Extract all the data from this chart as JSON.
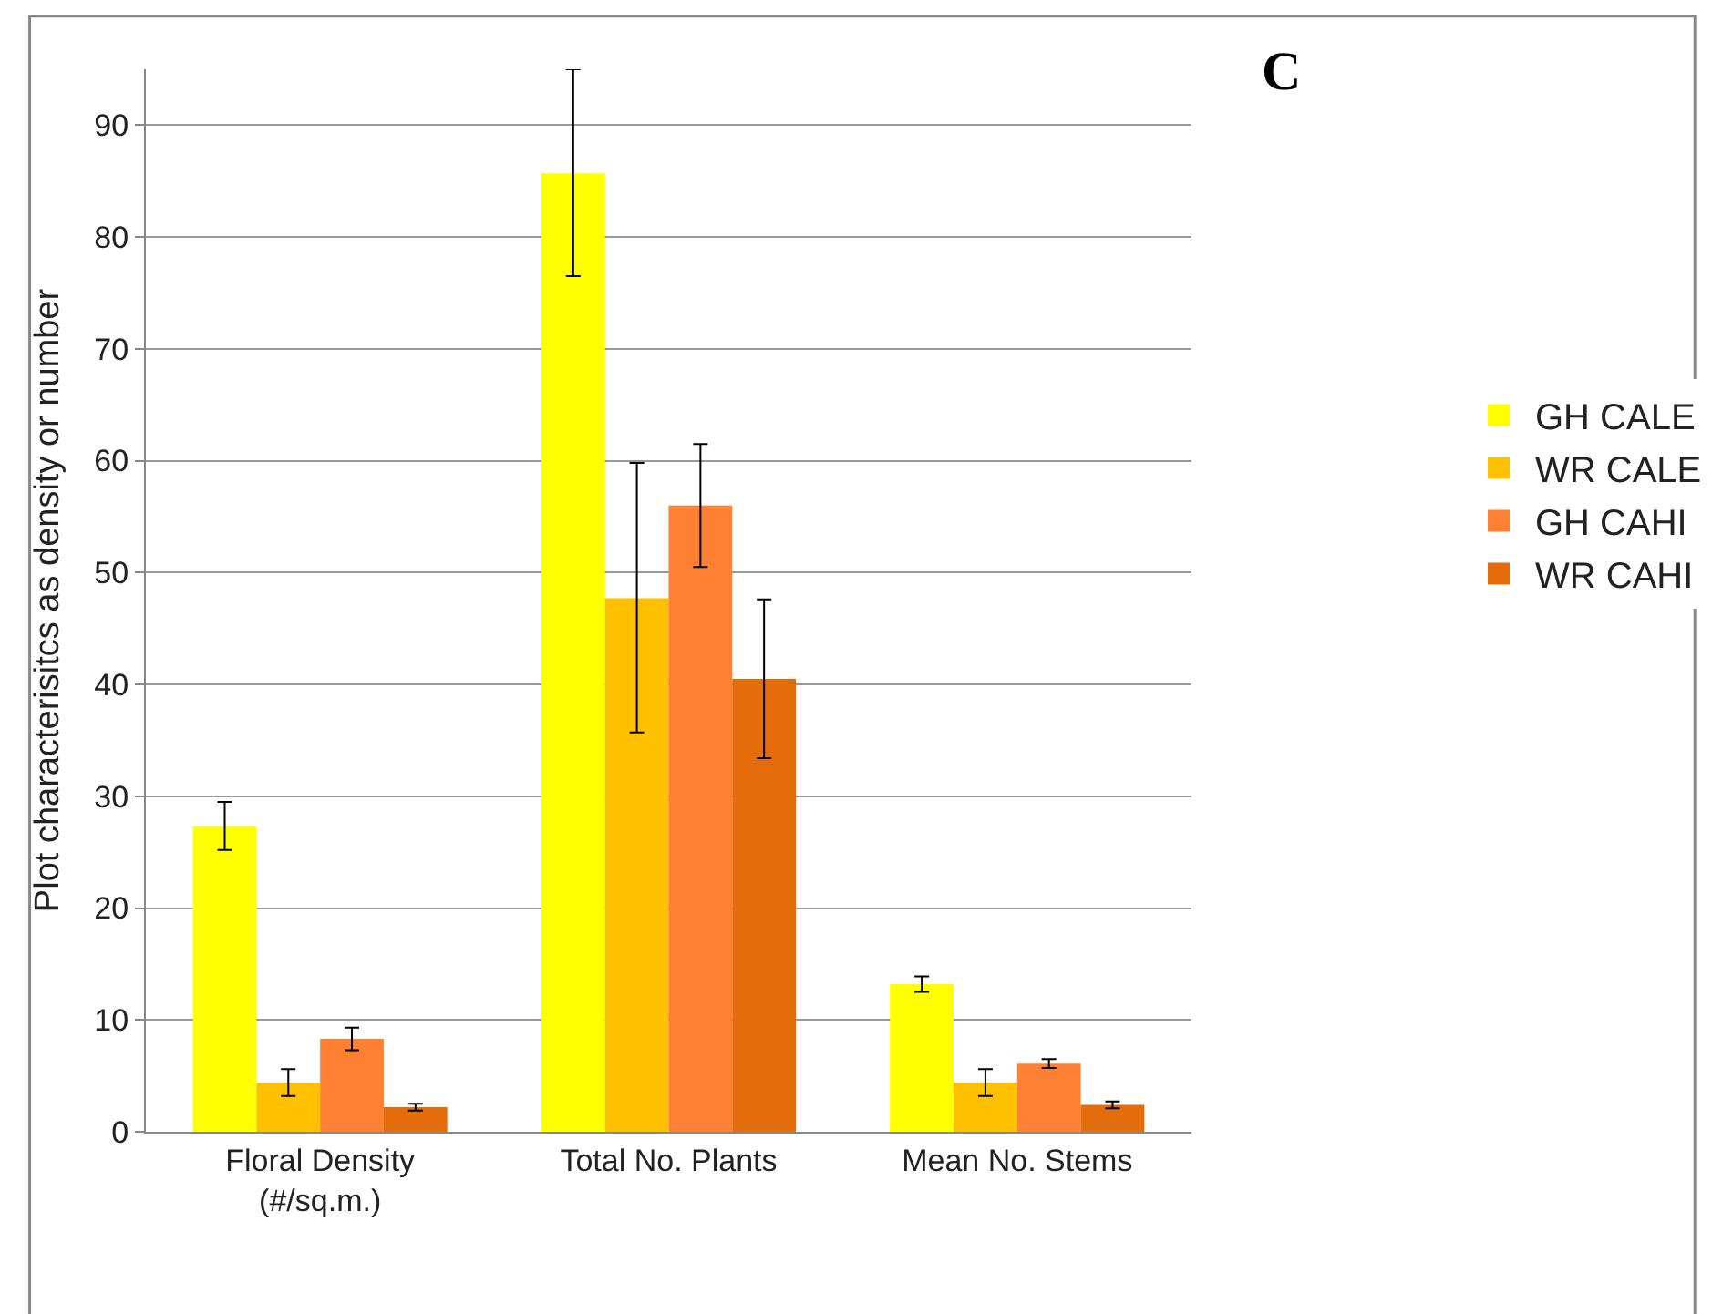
{
  "chart_data": {
    "type": "bar",
    "ylabel": "Plot characterisitcs as density or number",
    "categories": [
      "Floral Density\n(#/sq.m.)",
      "Total No. Plants",
      "Mean No. Stems"
    ],
    "series": [
      {
        "name": "GH CALE",
        "color": "#ffff00",
        "values": [
          27.3,
          85.7,
          13.2
        ],
        "errors": [
          [
            25.2,
            29.5
          ],
          [
            76.5,
            95
          ],
          [
            12.5,
            13.9
          ]
        ]
      },
      {
        "name": "WR CALE",
        "color": "#ffc000",
        "values": [
          4.4,
          47.7,
          4.4
        ],
        "errors": [
          [
            3.2,
            5.6
          ],
          [
            35.7,
            59.8
          ],
          [
            3.2,
            5.6
          ]
        ]
      },
      {
        "name": "GH CAHI",
        "color": "#ff8033",
        "values": [
          8.3,
          56,
          6.1
        ],
        "errors": [
          [
            7.3,
            9.3
          ],
          [
            50.5,
            61.5
          ],
          [
            5.7,
            6.5
          ]
        ]
      },
      {
        "name": "WR CAHI",
        "color": "#e46c0a",
        "values": [
          2.2,
          40.5,
          2.4
        ],
        "errors": [
          [
            1.9,
            2.5
          ],
          [
            33.4,
            47.6
          ],
          [
            2.1,
            2.7
          ]
        ]
      }
    ],
    "ylim": [
      0,
      95
    ],
    "yticks": [
      0,
      10,
      20,
      30,
      40,
      50,
      60,
      70,
      80,
      90
    ],
    "grid": "y",
    "legend": "right",
    "annotations": [
      "C"
    ]
  }
}
